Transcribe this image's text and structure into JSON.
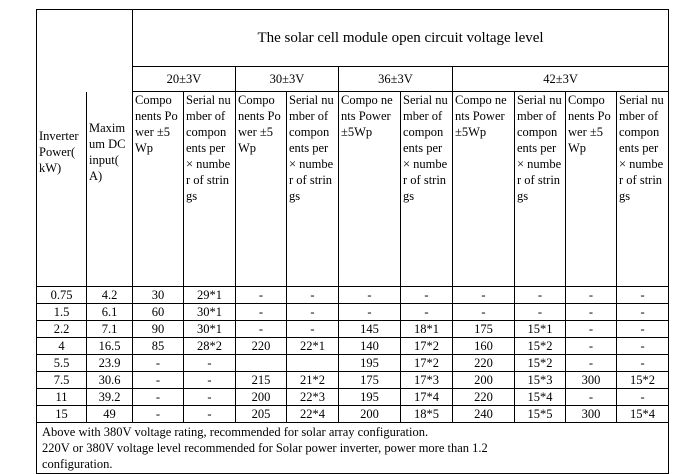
{
  "table": {
    "title": "The solar cell module open circuit voltage level",
    "voltage_levels": [
      "20±3V",
      "30±3V",
      "36±3V",
      "42±3V"
    ],
    "headers": {
      "inverter_power": "Inverter Power( kW)",
      "max_dc_input": "Maxim um DC input( A)",
      "components_power": "Compo nents Power ±5Wp",
      "serial_number": "Serial number of compon ents per × number of strings"
    },
    "rows": [
      [
        "0.75",
        "4.2",
        "30",
        "29*1",
        "-",
        "-",
        "-",
        "-",
        "-",
        "-",
        "-",
        "-"
      ],
      [
        "1.5",
        "6.1",
        "60",
        "30*1",
        "-",
        "-",
        "-",
        "-",
        "-",
        "-",
        "-",
        "-"
      ],
      [
        "2.2",
        "7.1",
        "90",
        "30*1",
        "-",
        "-",
        "145",
        "18*1",
        "175",
        "15*1",
        "-",
        "-"
      ],
      [
        "4",
        "16.5",
        "85",
        "28*2",
        "220",
        "22*1",
        "140",
        "17*2",
        "160",
        "15*2",
        "-",
        "-"
      ],
      [
        "5.5",
        "23.9",
        "-",
        "-",
        "",
        "",
        "195",
        "17*2",
        "220",
        "15*2",
        "-",
        "-"
      ],
      [
        "7.5",
        "30.6",
        "-",
        "-",
        "215",
        "21*2",
        "175",
        "17*3",
        "200",
        "15*3",
        "300",
        "15*2"
      ],
      [
        "11",
        "39.2",
        "-",
        "-",
        "200",
        "22*3",
        "195",
        "17*4",
        "220",
        "15*4",
        "-",
        "-"
      ],
      [
        "15",
        "49",
        "-",
        "-",
        "205",
        "22*4",
        "200",
        "18*5",
        "240",
        "15*5",
        "300",
        "15*4"
      ]
    ],
    "notes": [
      "Above with 380V voltage rating, recommended for    solar array configuration.",
      "220V or 380V voltage level recommended for Solar power inverter, power more than 1.2",
      "configuration."
    ]
  }
}
